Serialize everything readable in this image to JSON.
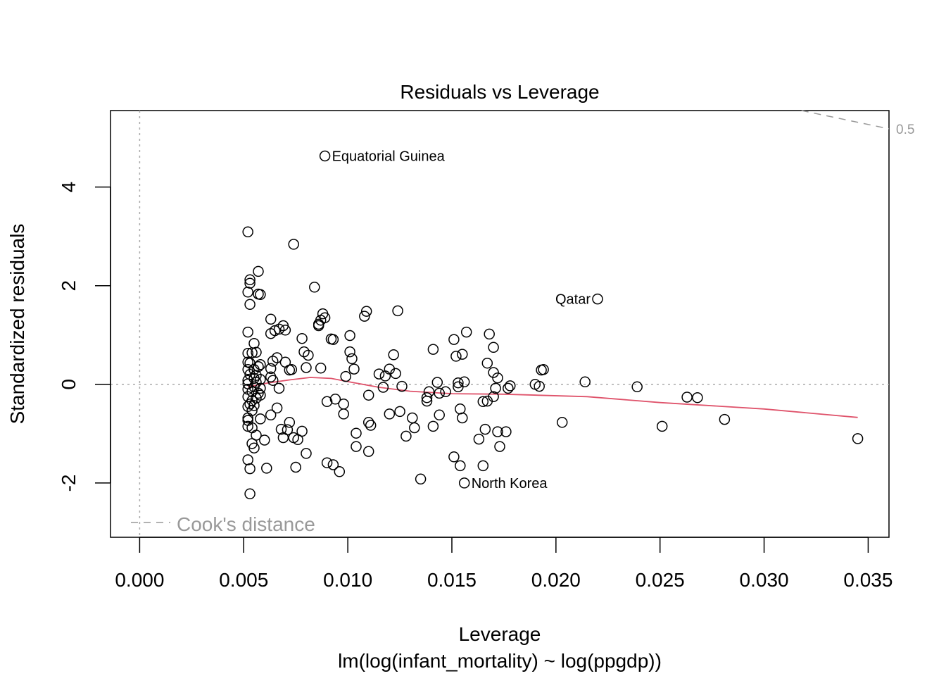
{
  "chart_data": {
    "type": "scatter",
    "title": "Residuals vs Leverage",
    "xlabel": "Leverage",
    "subtitle": "lm(log(infant_mortality) ~ log(ppgdp))",
    "ylabel": "Standardized residuals",
    "xlim": [
      -0.0014,
      0.036
    ],
    "ylim": [
      -3.1,
      5.55
    ],
    "xticks": [
      {
        "value": 0.0,
        "label": "0.000"
      },
      {
        "value": 0.005,
        "label": "0.005"
      },
      {
        "value": 0.01,
        "label": "0.010"
      },
      {
        "value": 0.015,
        "label": "0.015"
      },
      {
        "value": 0.02,
        "label": "0.020"
      },
      {
        "value": 0.025,
        "label": "0.025"
      },
      {
        "value": 0.03,
        "label": "0.030"
      },
      {
        "value": 0.035,
        "label": "0.035"
      }
    ],
    "yticks": [
      {
        "value": -2,
        "label": "-2"
      },
      {
        "value": 0,
        "label": "0"
      },
      {
        "value": 2,
        "label": "2"
      },
      {
        "value": 4,
        "label": "4"
      }
    ],
    "reference_lines": {
      "h": 0,
      "v": 0
    },
    "legend": {
      "label": "Cook's distance",
      "position": "bottom-left"
    },
    "cooks_distance": [
      {
        "level": "0.5",
        "from": [
          0.0318,
          5.55
        ],
        "to": [
          0.036,
          5.18
        ]
      }
    ],
    "labeled_points": [
      {
        "name": "Equatorial Guinea",
        "x": 0.0089,
        "y": 4.63,
        "side": "right"
      },
      {
        "name": "Qatar",
        "x": 0.022,
        "y": 1.73,
        "side": "left"
      },
      {
        "name": "North Korea",
        "x": 0.0156,
        "y": -2.0,
        "side": "right"
      }
    ],
    "smooth_line": [
      [
        0.0052,
        -0.05
      ],
      [
        0.0062,
        0.03
      ],
      [
        0.0072,
        0.09
      ],
      [
        0.0082,
        0.14
      ],
      [
        0.0092,
        0.12
      ],
      [
        0.0102,
        0.04
      ],
      [
        0.0115,
        -0.06
      ],
      [
        0.013,
        -0.14
      ],
      [
        0.015,
        -0.19
      ],
      [
        0.0175,
        -0.2
      ],
      [
        0.0215,
        -0.25
      ],
      [
        0.025,
        -0.37
      ],
      [
        0.03,
        -0.5
      ],
      [
        0.0345,
        -0.67
      ]
    ],
    "points": [
      [
        0.0052,
        3.09
      ],
      [
        0.0074,
        2.84
      ],
      [
        0.0057,
        2.29
      ],
      [
        0.0053,
        2.12
      ],
      [
        0.0053,
        2.05
      ],
      [
        0.0052,
        1.87
      ],
      [
        0.0057,
        1.83
      ],
      [
        0.0058,
        1.82
      ],
      [
        0.0053,
        1.62
      ],
      [
        0.0084,
        1.97
      ],
      [
        0.0088,
        1.43
      ],
      [
        0.0087,
        1.3
      ],
      [
        0.0086,
        1.19
      ],
      [
        0.0086,
        1.22
      ],
      [
        0.0089,
        1.35
      ],
      [
        0.0063,
        1.32
      ],
      [
        0.0069,
        1.19
      ],
      [
        0.0067,
        1.12
      ],
      [
        0.007,
        1.1
      ],
      [
        0.0065,
        1.09
      ],
      [
        0.0063,
        1.03
      ],
      [
        0.0052,
        1.06
      ],
      [
        0.0092,
        0.92
      ],
      [
        0.0093,
        0.91
      ],
      [
        0.0078,
        0.93
      ],
      [
        0.0055,
        0.83
      ],
      [
        0.0052,
        0.63
      ],
      [
        0.0054,
        0.64
      ],
      [
        0.0056,
        0.65
      ],
      [
        0.0079,
        0.66
      ],
      [
        0.0081,
        0.59
      ],
      [
        0.0066,
        0.54
      ],
      [
        0.0064,
        0.47
      ],
      [
        0.007,
        0.45
      ],
      [
        0.0052,
        0.45
      ],
      [
        0.0053,
        0.43
      ],
      [
        0.0058,
        0.4
      ],
      [
        0.0057,
        0.36
      ],
      [
        0.0055,
        0.3
      ],
      [
        0.0063,
        0.32
      ],
      [
        0.0073,
        0.3
      ],
      [
        0.0072,
        0.29
      ],
      [
        0.0052,
        0.3
      ],
      [
        0.008,
        0.34
      ],
      [
        0.0087,
        0.33
      ],
      [
        0.0053,
        0.2
      ],
      [
        0.0056,
        0.18
      ],
      [
        0.0063,
        0.15
      ],
      [
        0.0055,
        0.12
      ],
      [
        0.0058,
        0.1
      ],
      [
        0.0052,
        0.08
      ],
      [
        0.0064,
        0.08
      ],
      [
        0.0056,
        0.04
      ],
      [
        0.0052,
        0.01
      ],
      [
        0.0055,
        -0.05
      ],
      [
        0.0058,
        -0.08
      ],
      [
        0.0052,
        -0.1
      ],
      [
        0.0067,
        -0.08
      ],
      [
        0.0054,
        -0.15
      ],
      [
        0.0057,
        -0.18
      ],
      [
        0.0058,
        -0.22
      ],
      [
        0.0052,
        -0.25
      ],
      [
        0.0056,
        -0.28
      ],
      [
        0.0054,
        -0.33
      ],
      [
        0.0053,
        -0.4
      ],
      [
        0.0055,
        -0.43
      ],
      [
        0.0052,
        -0.45
      ],
      [
        0.0054,
        -0.53
      ],
      [
        0.0066,
        -0.48
      ],
      [
        0.0063,
        -0.62
      ],
      [
        0.0052,
        -0.68
      ],
      [
        0.0058,
        -0.7
      ],
      [
        0.0052,
        -0.73
      ],
      [
        0.0072,
        -0.77
      ],
      [
        0.0052,
        -0.85
      ],
      [
        0.0054,
        -0.88
      ],
      [
        0.0068,
        -0.91
      ],
      [
        0.0071,
        -0.92
      ],
      [
        0.0078,
        -0.95
      ],
      [
        0.0056,
        -1.03
      ],
      [
        0.0069,
        -1.08
      ],
      [
        0.0074,
        -1.08
      ],
      [
        0.0076,
        -1.12
      ],
      [
        0.006,
        -1.13
      ],
      [
        0.0054,
        -1.2
      ],
      [
        0.0055,
        -1.29
      ],
      [
        0.008,
        -1.4
      ],
      [
        0.0052,
        -1.53
      ],
      [
        0.0053,
        -1.71
      ],
      [
        0.0061,
        -1.7
      ],
      [
        0.0075,
        -1.68
      ],
      [
        0.0053,
        -2.22
      ],
      [
        0.0099,
        0.16
      ],
      [
        0.0101,
        0.99
      ],
      [
        0.0101,
        0.66
      ],
      [
        0.0102,
        0.52
      ],
      [
        0.0103,
        0.31
      ],
      [
        0.0108,
        1.38
      ],
      [
        0.0109,
        1.48
      ],
      [
        0.0098,
        -0.4
      ],
      [
        0.0094,
        -0.3
      ],
      [
        0.009,
        -0.35
      ],
      [
        0.0098,
        -0.6
      ],
      [
        0.011,
        -0.22
      ],
      [
        0.011,
        -0.77
      ],
      [
        0.0111,
        -0.83
      ],
      [
        0.0104,
        -0.99
      ],
      [
        0.0104,
        -1.26
      ],
      [
        0.011,
        -1.36
      ],
      [
        0.009,
        -1.59
      ],
      [
        0.0093,
        -1.63
      ],
      [
        0.0096,
        -1.77
      ],
      [
        0.0124,
        1.49
      ],
      [
        0.0122,
        0.6
      ],
      [
        0.012,
        0.31
      ],
      [
        0.0115,
        0.21
      ],
      [
        0.0118,
        0.17
      ],
      [
        0.0123,
        0.22
      ],
      [
        0.0117,
        -0.06
      ],
      [
        0.0126,
        -0.04
      ],
      [
        0.0125,
        -0.55
      ],
      [
        0.012,
        -0.6
      ],
      [
        0.0131,
        -0.68
      ],
      [
        0.0132,
        -0.88
      ],
      [
        0.0128,
        -1.05
      ],
      [
        0.0135,
        -1.92
      ],
      [
        0.0141,
        0.71
      ],
      [
        0.0143,
        0.04
      ],
      [
        0.0139,
        -0.15
      ],
      [
        0.0138,
        -0.27
      ],
      [
        0.0138,
        -0.34
      ],
      [
        0.0144,
        -0.18
      ],
      [
        0.0147,
        -0.15
      ],
      [
        0.0144,
        -0.62
      ],
      [
        0.0141,
        -0.85
      ],
      [
        0.0151,
        0.91
      ],
      [
        0.0152,
        0.57
      ],
      [
        0.0155,
        0.61
      ],
      [
        0.0157,
        1.06
      ],
      [
        0.0153,
        0.03
      ],
      [
        0.0153,
        -0.05
      ],
      [
        0.0156,
        0.05
      ],
      [
        0.0154,
        -0.5
      ],
      [
        0.0155,
        -0.68
      ],
      [
        0.0151,
        -1.47
      ],
      [
        0.0154,
        -1.65
      ],
      [
        0.0156,
        -2.0
      ],
      [
        0.0168,
        1.02
      ],
      [
        0.017,
        0.75
      ],
      [
        0.0167,
        0.43
      ],
      [
        0.017,
        0.24
      ],
      [
        0.0172,
        0.13
      ],
      [
        0.0171,
        -0.08
      ],
      [
        0.017,
        -0.25
      ],
      [
        0.0167,
        -0.34
      ],
      [
        0.0165,
        -0.35
      ],
      [
        0.0166,
        -0.91
      ],
      [
        0.0172,
        -0.96
      ],
      [
        0.0176,
        -0.96
      ],
      [
        0.0163,
        -1.11
      ],
      [
        0.0173,
        -1.26
      ],
      [
        0.0165,
        -1.65
      ],
      [
        0.0178,
        -0.03
      ],
      [
        0.0177,
        -0.08
      ],
      [
        0.019,
        0.0
      ],
      [
        0.0192,
        -0.04
      ],
      [
        0.0193,
        0.29
      ],
      [
        0.0194,
        0.3
      ],
      [
        0.0214,
        0.05
      ],
      [
        0.0203,
        -0.77
      ],
      [
        0.022,
        1.73
      ],
      [
        0.0239,
        -0.05
      ],
      [
        0.0251,
        -0.85
      ],
      [
        0.0263,
        -0.26
      ],
      [
        0.0268,
        -0.27
      ],
      [
        0.0281,
        -0.71
      ],
      [
        0.0345,
        -1.1
      ],
      [
        0.0089,
        4.63
      ]
    ]
  }
}
